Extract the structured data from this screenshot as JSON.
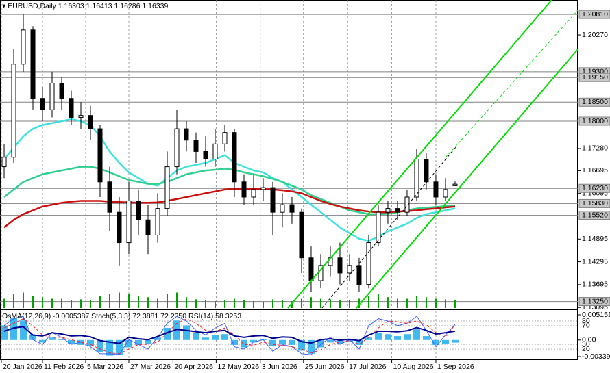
{
  "header": {
    "symbol": "EURUSD,Daily",
    "open": 1.16303,
    "high": 1.16413,
    "low": 1.16286,
    "close": 1.16339
  },
  "chart_data": {
    "type": "candlestick",
    "xlim": [
      -0.43,
      59.79
    ],
    "ylim": [
      1.1308,
      1.2119
    ],
    "grid": true,
    "xticks": [
      {
        "value": -0.29,
        "label": "20 Jan 2026"
      },
      {
        "value": 4,
        "label": "11 Feb 2026"
      },
      {
        "value": 8.5,
        "label": "5 Mar 2026"
      },
      {
        "value": 13,
        "label": "27 Mar 2026"
      },
      {
        "value": 17.6,
        "label": "20 Apr 2026"
      },
      {
        "value": 22.1,
        "label": "12 May 2026"
      },
      {
        "value": 26.7,
        "label": "3 Jun 2026"
      },
      {
        "value": 31.2,
        "label": "25 Jun 2026"
      },
      {
        "value": 35.8,
        "label": "17 Jul 2026"
      },
      {
        "value": 40.4,
        "label": "10 Aug 2026"
      },
      {
        "value": 45,
        "label": "1 Sep 2026"
      }
    ],
    "yticks": [
      {
        "value": 1.2027,
        "label": "1.20270"
      },
      {
        "value": 1.1728,
        "label": "1.17280"
      },
      1.16695,
      1.16095,
      1.14895,
      1.14295,
      1.13695,
      1.13095
    ],
    "levels": [
      {
        "value": 1.2081,
        "label": "1.20810"
      },
      {
        "value": 1.193,
        "label": "1.19300"
      },
      {
        "value": 1.1915,
        "label": "1.19150"
      },
      {
        "value": 1.185,
        "label": "1.18500"
      },
      {
        "value": 1.18,
        "label": "1.18000"
      },
      {
        "value": 1.1623,
        "label": "1.16230"
      },
      {
        "value": 1.1583,
        "label": "1.15830"
      },
      {
        "value": 1.1552,
        "label": "1.15520"
      },
      {
        "value": 1.1325,
        "label": "1.13250"
      }
    ],
    "open": [
      1.168,
      1.1705,
      1.195,
      1.204,
      1.186,
      1.183,
      1.19,
      1.186,
      1.181,
      1.1815,
      1.178,
      1.164,
      1.156,
      1.148,
      1.159,
      1.154,
      1.15,
      1.157,
      1.168,
      1.178,
      1.175,
      1.172,
      1.17,
      1.174,
      1.177,
      1.164,
      1.16,
      1.162,
      1.1625,
      1.156,
      1.158,
      1.156,
      1.144,
      1.138,
      1.142,
      1.144,
      1.14,
      1.142,
      1.137,
      1.148,
      1.156,
      1.157,
      1.156,
      1.16,
      1.17,
      1.164,
      1.16,
      1.163
    ],
    "high": [
      1.174,
      1.199,
      1.2081,
      1.205,
      1.189,
      1.193,
      1.1915,
      1.188,
      1.185,
      1.184,
      1.179,
      1.168,
      1.16,
      1.164,
      1.162,
      1.158,
      1.161,
      1.172,
      1.183,
      1.18,
      1.177,
      1.176,
      1.178,
      1.179,
      1.178,
      1.166,
      1.166,
      1.165,
      1.164,
      1.161,
      1.16,
      1.157,
      1.147,
      1.145,
      1.147,
      1.148,
      1.145,
      1.144,
      1.15,
      1.158,
      1.159,
      1.159,
      1.162,
      1.1728,
      1.1715,
      1.166,
      1.165,
      1.1641
    ],
    "low": [
      1.165,
      1.169,
      1.193,
      1.183,
      1.18,
      1.181,
      1.183,
      1.179,
      1.178,
      1.175,
      1.16,
      1.151,
      1.142,
      1.145,
      1.15,
      1.145,
      1.148,
      1.155,
      1.166,
      1.172,
      1.169,
      1.168,
      1.168,
      1.172,
      1.16,
      1.158,
      1.158,
      1.159,
      1.15,
      1.152,
      1.153,
      1.14,
      1.135,
      1.136,
      1.139,
      1.137,
      1.138,
      1.135,
      1.136,
      1.147,
      1.153,
      1.154,
      1.155,
      1.159,
      1.162,
      1.158,
      1.159,
      1.1629
    ],
    "close": [
      1.1705,
      1.195,
      1.204,
      1.186,
      1.183,
      1.19,
      1.186,
      1.181,
      1.1815,
      1.178,
      1.164,
      1.156,
      1.148,
      1.159,
      1.154,
      1.15,
      1.157,
      1.168,
      1.178,
      1.175,
      1.172,
      1.17,
      1.174,
      1.177,
      1.164,
      1.16,
      1.162,
      1.1625,
      1.156,
      1.158,
      1.156,
      1.144,
      1.138,
      1.142,
      1.144,
      1.14,
      1.142,
      1.137,
      1.148,
      1.156,
      1.157,
      1.156,
      1.16,
      1.17,
      1.164,
      1.16,
      1.162,
      1.1634
    ],
    "moving_averages": [
      {
        "color": "#40e0e0",
        "values": [
          1.17,
          1.173,
          1.176,
          1.178,
          1.179,
          1.1795,
          1.18,
          1.1805,
          1.18,
          1.179,
          1.176,
          1.172,
          1.169,
          1.1665,
          1.165,
          1.1635,
          1.163,
          1.165,
          1.167,
          1.168,
          1.1685,
          1.169,
          1.17,
          1.171,
          1.169,
          1.168,
          1.167,
          1.1665,
          1.165,
          1.164,
          1.162,
          1.16,
          1.158,
          1.156,
          1.154,
          1.152,
          1.1505,
          1.149,
          1.1485,
          1.1495,
          1.151,
          1.152,
          1.153,
          1.1545,
          1.1555,
          1.156,
          1.1565,
          1.157
        ]
      },
      {
        "color": "#30d090",
        "values": [
          1.16,
          1.162,
          1.164,
          1.165,
          1.166,
          1.1665,
          1.167,
          1.1675,
          1.168,
          1.168,
          1.1675,
          1.1665,
          1.1655,
          1.1645,
          1.164,
          1.1635,
          1.1635,
          1.164,
          1.165,
          1.166,
          1.1665,
          1.167,
          1.1672,
          1.1675,
          1.1672,
          1.1665,
          1.166,
          1.1655,
          1.1648,
          1.164,
          1.163,
          1.162,
          1.1605,
          1.1595,
          1.1585,
          1.1575,
          1.1565,
          1.156,
          1.1555,
          1.1555,
          1.1556,
          1.156,
          1.1565,
          1.157,
          1.1572,
          1.1574,
          1.1576,
          1.1578
        ]
      },
      {
        "color": "#cc1010",
        "values": [
          1.152,
          1.154,
          1.1555,
          1.1565,
          1.1575,
          1.158,
          1.1585,
          1.1588,
          1.159,
          1.159,
          1.159,
          1.1588,
          1.1587,
          1.1586,
          1.1585,
          1.1585,
          1.1586,
          1.159,
          1.1595,
          1.16,
          1.1605,
          1.161,
          1.1615,
          1.162,
          1.1622,
          1.1622,
          1.1622,
          1.1621,
          1.162,
          1.1618,
          1.1615,
          1.161,
          1.16,
          1.159,
          1.1582,
          1.1575,
          1.157,
          1.1565,
          1.1562,
          1.156,
          1.156,
          1.1562,
          1.1563,
          1.1565,
          1.1568,
          1.157,
          1.1573,
          1.1575
        ]
      }
    ],
    "volume": [
      30,
      45,
      50,
      40,
      35,
      30,
      30,
      25,
      28,
      25,
      40,
      45,
      50,
      45,
      40,
      35,
      30,
      45,
      50,
      35,
      28,
      25,
      22,
      25,
      30,
      25,
      22,
      20,
      28,
      25,
      22,
      30,
      35,
      30,
      28,
      25,
      25,
      30,
      40,
      45,
      35,
      30,
      30,
      40,
      35,
      30,
      28,
      25
    ],
    "volume_color": "#00a000",
    "volume_lim": [
      0,
      100
    ],
    "trendlines": [
      {
        "color": "#00dd00",
        "dash": false,
        "x": [
          29.57,
          57.07
        ],
        "y": [
          1.1308,
          1.2119
        ]
      },
      {
        "color": "#00dd00",
        "dash": false,
        "x": [
          36.71,
          59.79
        ],
        "y": [
          1.1308,
          1.19891
        ]
      },
      {
        "color": "#00dd00",
        "dash": true,
        "x": [
          46.0,
          59.79
        ],
        "y": [
          1.17043,
          1.20919
        ]
      },
      {
        "color": "#000000",
        "dash": true,
        "x": [
          33.14,
          47.07
        ],
        "y": [
          1.1308,
          1.17314
        ]
      }
    ]
  },
  "indicator": {
    "label": "OsMA(12,26,9) -0.0005387  Stoch(5,3,3) 72.3881 72.2350  RSI(14) 58.3253",
    "osma": {
      "color": "#40b8f0",
      "lim": [
        -0.00339,
        0.0051514
      ],
      "ticks": [
        0.0051514,
        {
          "value": 0,
          "label": "0.00"
        },
        -0.00339
      ],
      "values": [
        0.003,
        0.0045,
        0.004,
        0.001,
        -0.0005,
        0.0005,
        0.0002,
        -0.0008,
        -0.001,
        -0.0012,
        -0.0025,
        -0.0032,
        -0.003,
        -0.0015,
        -0.001,
        -0.0008,
        0.0005,
        0.0025,
        0.004,
        0.003,
        0.0015,
        0.0005,
        0.001,
        0.0012,
        -0.001,
        -0.0015,
        -0.0005,
        0.0002,
        -0.0012,
        -0.0008,
        -0.001,
        -0.0022,
        -0.0028,
        -0.0015,
        -0.0005,
        -0.0008,
        -0.0003,
        -0.001,
        0.0005,
        0.0015,
        0.0012,
        0.0008,
        0.0012,
        0.0022,
        0.0008,
        -0.001,
        -0.0008,
        -0.0005387
      ]
    },
    "lim": [
      0,
      100
    ],
    "yticks": [
      80,
      70,
      30,
      20
    ],
    "series": [
      {
        "color": "#4060ff",
        "dash": false,
        "values": [
          70,
          85,
          90,
          40,
          30,
          55,
          45,
          30,
          35,
          25,
          10,
          10,
          8,
          40,
          30,
          20,
          45,
          75,
          90,
          80,
          60,
          50,
          65,
          75,
          25,
          20,
          35,
          40,
          15,
          30,
          25,
          10,
          8,
          30,
          45,
          30,
          40,
          20,
          70,
          85,
          80,
          70,
          75,
          90,
          60,
          25,
          50,
          72.39
        ]
      },
      {
        "color": "#ff2020",
        "dash": true,
        "values": [
          65,
          75,
          85,
          70,
          50,
          45,
          45,
          40,
          35,
          30,
          20,
          12,
          10,
          20,
          30,
          30,
          35,
          55,
          75,
          85,
          75,
          60,
          58,
          65,
          50,
          30,
          28,
          35,
          30,
          28,
          25,
          20,
          12,
          18,
          30,
          35,
          38,
          30,
          45,
          65,
          80,
          78,
          75,
          80,
          72,
          55,
          45,
          72.24
        ]
      },
      {
        "color": "#000090",
        "dash": false,
        "values": [
          58,
          65,
          68,
          50,
          48,
          55,
          52,
          48,
          49,
          46,
          38,
          35,
          32,
          45,
          42,
          40,
          47,
          55,
          62,
          60,
          57,
          55,
          58,
          60,
          48,
          45,
          48,
          49,
          43,
          46,
          45,
          36,
          33,
          40,
          42,
          39,
          41,
          38,
          50,
          58,
          58,
          57,
          59,
          66,
          60,
          52,
          55,
          58.33
        ]
      }
    ]
  }
}
